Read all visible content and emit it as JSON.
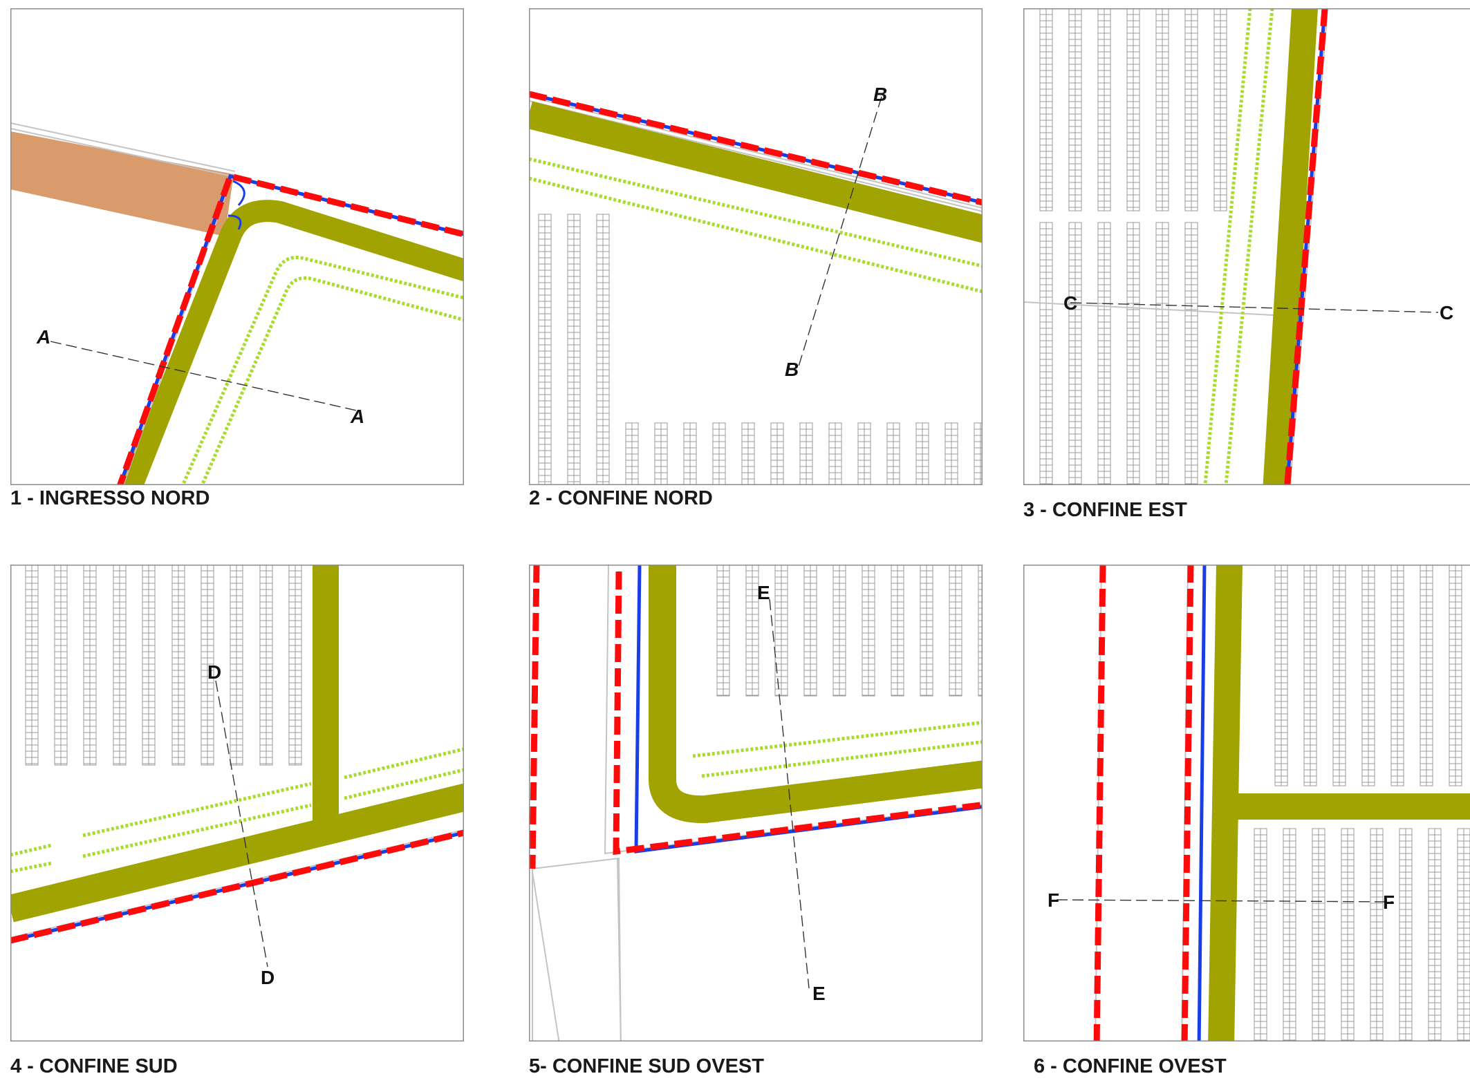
{
  "colors": {
    "road": "#a0a300",
    "boundary_red": "#ff0a0a",
    "boundary_blue": "#1a3ee6",
    "hedge": "#a6dc2c",
    "panel_grid": "#9a9a9a",
    "access_road": "#d99a6c",
    "frame": "#8c8c8c"
  },
  "panels": [
    {
      "id": "1",
      "caption": "1 - INGRESSO NORD",
      "section": "A"
    },
    {
      "id": "2",
      "caption": "2 - CONFINE NORD",
      "section": "B"
    },
    {
      "id": "3",
      "caption": "3 - CONFINE EST",
      "section": "C"
    },
    {
      "id": "4",
      "caption": "4 - CONFINE SUD",
      "section": "D"
    },
    {
      "id": "5",
      "caption": "5- CONFINE SUD OVEST",
      "section": "E"
    },
    {
      "id": "6",
      "caption": "6 - CONFINE OVEST",
      "section": "F"
    }
  ]
}
